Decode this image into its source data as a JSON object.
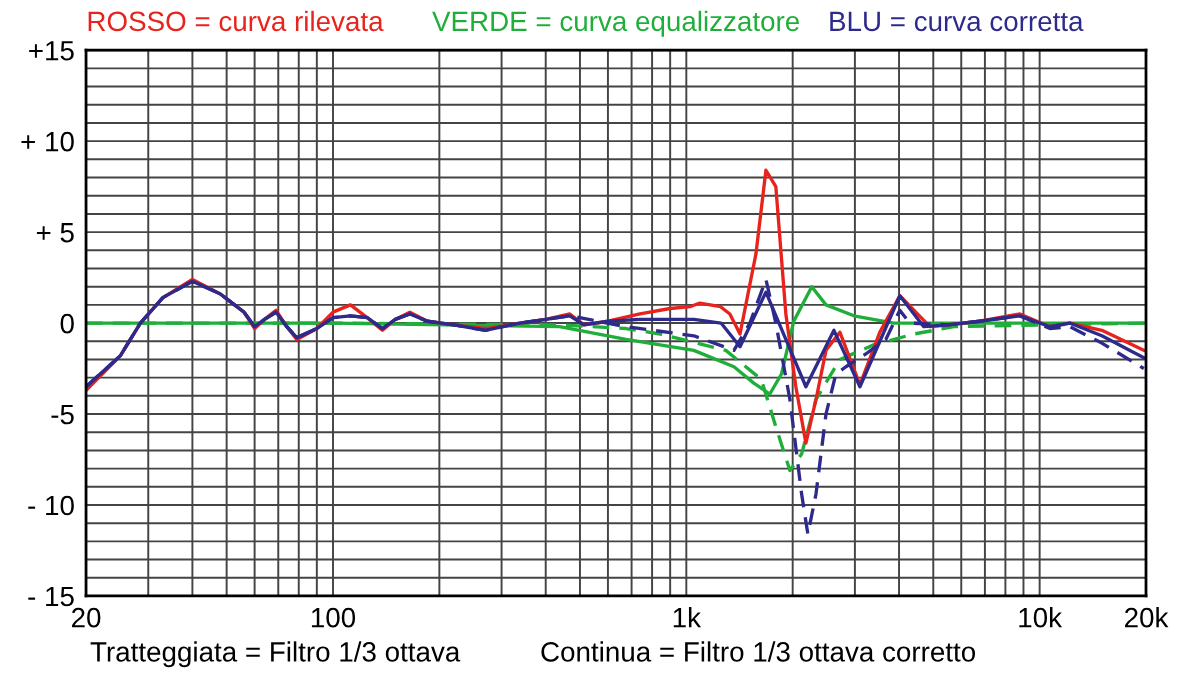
{
  "chart_data": {
    "type": "line",
    "log": "x",
    "grid": true,
    "legend": false,
    "annotations": [
      "Tratteggiata = Filtro 1/3 ottava",
      "Continua = Filtro 1/3 ottava corretto"
    ],
    "xlim": [
      20,
      20000
    ],
    "xticks": [
      {
        "value": 20,
        "label": "20"
      },
      {
        "value": 30,
        "label": null
      },
      {
        "value": 40,
        "label": null
      },
      {
        "value": 50,
        "label": null
      },
      {
        "value": 60,
        "label": null
      },
      {
        "value": 70,
        "label": null
      },
      {
        "value": 80,
        "label": null
      },
      {
        "value": 90,
        "label": null
      },
      {
        "value": 100,
        "label": "100"
      },
      {
        "value": 200,
        "label": null
      },
      {
        "value": 300,
        "label": null
      },
      {
        "value": 400,
        "label": null
      },
      {
        "value": 500,
        "label": null
      },
      {
        "value": 600,
        "label": null
      },
      {
        "value": 700,
        "label": null
      },
      {
        "value": 800,
        "label": null
      },
      {
        "value": 900,
        "label": null
      },
      {
        "value": 1000,
        "label": "1k"
      },
      {
        "value": 2000,
        "label": null
      },
      {
        "value": 3000,
        "label": null
      },
      {
        "value": 4000,
        "label": null
      },
      {
        "value": 5000,
        "label": null
      },
      {
        "value": 6000,
        "label": null
      },
      {
        "value": 7000,
        "label": null
      },
      {
        "value": 8000,
        "label": null
      },
      {
        "value": 9000,
        "label": null
      },
      {
        "value": 10000,
        "label": "10k"
      },
      {
        "value": 20000,
        "label": "20k"
      }
    ],
    "ylim": [
      -15,
      15
    ],
    "yticks": [
      {
        "value": -15,
        "label": "- 15"
      },
      {
        "value": -14,
        "label": null
      },
      {
        "value": -13,
        "label": null
      },
      {
        "value": -12,
        "label": null
      },
      {
        "value": -11,
        "label": null
      },
      {
        "value": -10,
        "label": "- 10"
      },
      {
        "value": -9,
        "label": null
      },
      {
        "value": -8,
        "label": null
      },
      {
        "value": -7,
        "label": null
      },
      {
        "value": -6,
        "label": null
      },
      {
        "value": -5,
        "label": "-5"
      },
      {
        "value": -4,
        "label": null
      },
      {
        "value": -3,
        "label": null
      },
      {
        "value": -2,
        "label": null
      },
      {
        "value": -1,
        "label": null
      },
      {
        "value": 0,
        "label": "0"
      },
      {
        "value": 1,
        "label": null
      },
      {
        "value": 2,
        "label": null
      },
      {
        "value": 3,
        "label": null
      },
      {
        "value": 4,
        "label": null
      },
      {
        "value": 5,
        "label": "+ 5"
      },
      {
        "value": 6,
        "label": null
      },
      {
        "value": 7,
        "label": null
      },
      {
        "value": 8,
        "label": null
      },
      {
        "value": 9,
        "label": null
      },
      {
        "value": 10,
        "label": "+ 10"
      },
      {
        "value": 11,
        "label": null
      },
      {
        "value": 12,
        "label": null
      },
      {
        "value": 13,
        "label": null
      },
      {
        "value": 14,
        "label": null
      },
      {
        "value": 15,
        "label": "+15"
      }
    ],
    "series": [
      {
        "color": "#1fae3a",
        "line_style": "dashed",
        "x": [
          20,
          100,
          438,
          675,
          842,
          1294,
          1630,
          1792,
          1964,
          2120,
          2328,
          2720,
          3390,
          4410,
          5720,
          20000
        ],
        "values": [
          0,
          0,
          -0.1,
          -0.3,
          -0.6,
          -1.5,
          -3.1,
          -5.7,
          -8.1,
          -7.2,
          -4.2,
          -2.0,
          -1.2,
          -0.6,
          -0.2,
          0
        ]
      },
      {
        "name": "VERDE = curva equalizzatore",
        "color": "#1fae3a",
        "line_style": "solid",
        "x": [
          20,
          100,
          438,
          675,
          1050,
          1364,
          1552,
          1723,
          1859,
          2014,
          2265,
          2485,
          2980,
          3870,
          20000
        ],
        "values": [
          0,
          0,
          -0.2,
          -0.9,
          -1.5,
          -2.4,
          -3.3,
          -3.9,
          -2.8,
          0.1,
          2.0,
          1.0,
          0.4,
          0,
          0
        ]
      },
      {
        "name": "ROSSO = curva rilevata",
        "color": "#e8221c",
        "line_style": "solid",
        "x": [
          20,
          25,
          28.5,
          33,
          40,
          48,
          56,
          60,
          64,
          69,
          74,
          79,
          90,
          100,
          112,
          125,
          138,
          150,
          165,
          185,
          220,
          270,
          338,
          400,
          468,
          513,
          600,
          739,
          900,
          1024,
          1092,
          1250,
          1328,
          1419,
          1574,
          1680,
          1792,
          1913,
          2042,
          2180,
          2328,
          2485,
          2720,
          3100,
          3530,
          4020,
          4890,
          5500,
          6770,
          8790,
          10690,
          12170,
          15000,
          19720
        ],
        "values": [
          -3.7,
          -1.8,
          0,
          1.4,
          2.4,
          1.6,
          0.6,
          -0.3,
          0.2,
          0.7,
          -0.2,
          -0.9,
          -0.3,
          0.6,
          1.0,
          0.3,
          -0.4,
          0.2,
          0.6,
          0.1,
          -0.1,
          -0.3,
          0,
          0.2,
          0.5,
          -0.1,
          0.1,
          0.5,
          0.8,
          0.9,
          1.1,
          0.9,
          0.5,
          -0.6,
          3.8,
          8.4,
          7.5,
          0.5,
          -3.5,
          -6.6,
          -4.2,
          -1.5,
          -0.5,
          -3.4,
          -0.5,
          1.5,
          -0.2,
          -0.1,
          0.1,
          0.5,
          -0.2,
          0,
          -0.4,
          -1.5
        ]
      },
      {
        "color": "#2e2a8c",
        "line_style": "dashed",
        "x": [
          20,
          25,
          28.5,
          33,
          40,
          48,
          56,
          60,
          64,
          69,
          74,
          79,
          90,
          100,
          112,
          125,
          138,
          150,
          165,
          185,
          220,
          270,
          338,
          400,
          468,
          675,
          1050,
          1364,
          1513,
          1680,
          1792,
          1964,
          2120,
          2208,
          2328,
          2485,
          2650,
          2830,
          3220,
          3670,
          4020,
          4290,
          5500,
          6770,
          8790,
          10690,
          12170,
          15000,
          19720
        ],
        "values": [
          -3.5,
          -1.8,
          0,
          1.4,
          2.3,
          1.6,
          0.6,
          -0.2,
          0.2,
          0.6,
          -0.2,
          -0.8,
          -0.3,
          0.3,
          0.4,
          0.3,
          -0.3,
          0.2,
          0.5,
          0.1,
          -0.1,
          -0.4,
          0,
          0.2,
          0.4,
          -0.2,
          -0.7,
          -1.5,
          0,
          2.4,
          0,
          -4.2,
          -9.4,
          -11.6,
          -9.4,
          -5.0,
          -2.8,
          -2.4,
          -1.7,
          -0.9,
          0.7,
          0,
          -0.1,
          0.1,
          0.4,
          -0.3,
          -0.2,
          -1.1,
          -2.5
        ]
      },
      {
        "name": "BLU = curva corretta",
        "color": "#2e2a8c",
        "line_style": "solid",
        "x": [
          20,
          25,
          28.5,
          33,
          40,
          48,
          56,
          60,
          64,
          69,
          74,
          79,
          90,
          100,
          112,
          125,
          138,
          150,
          165,
          185,
          220,
          270,
          338,
          400,
          468,
          513,
          600,
          739,
          1050,
          1254,
          1419,
          1680,
          1913,
          2180,
          2617,
          3100,
          4020,
          4700,
          5500,
          6770,
          8790,
          10690,
          12170,
          15000,
          19720
        ],
        "values": [
          -3.5,
          -1.8,
          0,
          1.4,
          2.3,
          1.6,
          0.6,
          -0.2,
          0.2,
          0.6,
          -0.2,
          -0.8,
          -0.3,
          0.3,
          0.4,
          0.3,
          -0.3,
          0.2,
          0.5,
          0.1,
          -0.1,
          -0.4,
          0,
          0.2,
          0.4,
          -0.1,
          0.1,
          0.2,
          0.2,
          0,
          -1.3,
          1.7,
          -0.9,
          -3.5,
          -0.4,
          -3.5,
          1.5,
          -0.2,
          -0.1,
          0.1,
          0.4,
          -0.2,
          0,
          -0.7,
          -1.9
        ]
      }
    ]
  }
}
